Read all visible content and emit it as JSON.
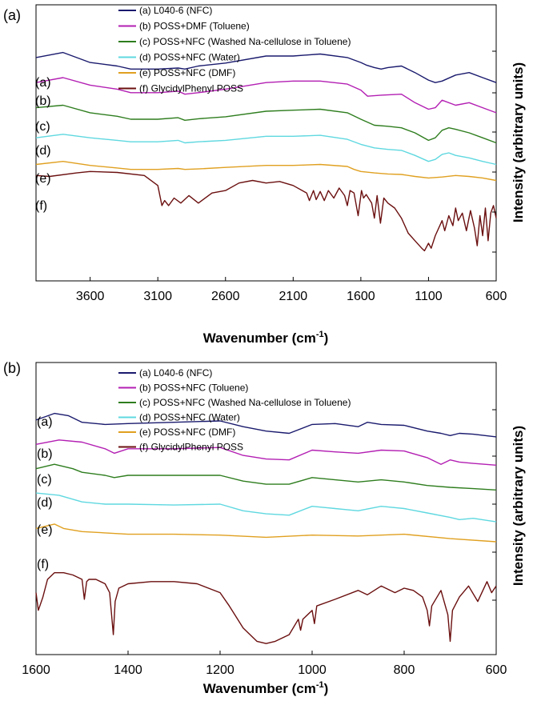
{
  "chart_data": [
    {
      "type": "line",
      "panel": "(a)",
      "xlabel_main": "Wavenumber (cm",
      "xlabel_sup": "-1",
      "xlabel_tail": ")",
      "ylabel": "Intensity (arbitrary units)",
      "xlim": [
        4000,
        600
      ],
      "x_ticks": [
        3600,
        3100,
        2600,
        2100,
        1600,
        1100,
        600
      ],
      "grid": false,
      "legend_position": "top",
      "curve_labels": [
        "(a)",
        "(b)",
        "(c)",
        "(d)",
        "(e)",
        "(f)"
      ],
      "series": [
        {
          "name": "(a) L040-6 (NFC)",
          "color": "#1a1a6e",
          "x": [
            4000,
            3800,
            3600,
            3400,
            3300,
            3100,
            2950,
            2900,
            2800,
            2600,
            2300,
            2100,
            1900,
            1700,
            1650,
            1600,
            1560,
            1500,
            1450,
            1400,
            1300,
            1200,
            1100,
            1050,
            1000,
            900,
            800,
            700,
            600
          ],
          "y": [
            2.95,
            3.05,
            2.85,
            2.78,
            2.72,
            2.72,
            2.74,
            2.72,
            2.78,
            2.84,
            2.98,
            2.98,
            3.02,
            2.95,
            2.9,
            2.85,
            2.8,
            2.75,
            2.72,
            2.75,
            2.78,
            2.65,
            2.5,
            2.45,
            2.48,
            2.6,
            2.65,
            2.55,
            2.45
          ]
        },
        {
          "name": "(b) POSS+DMF (Toluene)",
          "color": "#b31fb3",
          "x": [
            4000,
            3800,
            3600,
            3400,
            3300,
            3100,
            2950,
            2900,
            2800,
            2600,
            2300,
            2100,
            1900,
            1700,
            1600,
            1550,
            1450,
            1300,
            1200,
            1100,
            1050,
            1000,
            900,
            800,
            700,
            600
          ],
          "y": [
            2.45,
            2.55,
            2.4,
            2.32,
            2.25,
            2.25,
            2.28,
            2.22,
            2.25,
            2.32,
            2.45,
            2.48,
            2.48,
            2.42,
            2.3,
            2.18,
            2.2,
            2.22,
            2.05,
            1.92,
            1.95,
            2.1,
            2.0,
            2.05,
            1.95,
            1.85
          ]
        },
        {
          "name": "(c) POSS+NFC (Washed Na-cellulose in Toluene)",
          "color": "#2e7d1e",
          "x": [
            4000,
            3800,
            3600,
            3400,
            3300,
            3100,
            2950,
            2900,
            2800,
            2600,
            2300,
            2100,
            1900,
            1700,
            1600,
            1500,
            1400,
            1300,
            1200,
            1100,
            1050,
            1000,
            950,
            900,
            800,
            700,
            600
          ],
          "y": [
            1.95,
            2.0,
            1.85,
            1.78,
            1.72,
            1.72,
            1.75,
            1.7,
            1.73,
            1.77,
            1.88,
            1.9,
            1.92,
            1.85,
            1.72,
            1.6,
            1.58,
            1.55,
            1.45,
            1.3,
            1.35,
            1.5,
            1.55,
            1.52,
            1.45,
            1.35,
            1.25
          ]
        },
        {
          "name": "(d) POSS+NFC (Water)",
          "color": "#5fd8e0",
          "x": [
            4000,
            3800,
            3600,
            3400,
            3300,
            3100,
            2950,
            2900,
            2800,
            2600,
            2300,
            2100,
            1900,
            1700,
            1600,
            1500,
            1400,
            1300,
            1200,
            1100,
            1050,
            1000,
            950,
            900,
            800,
            700,
            600
          ],
          "y": [
            1.35,
            1.42,
            1.35,
            1.3,
            1.27,
            1.27,
            1.3,
            1.25,
            1.27,
            1.3,
            1.38,
            1.38,
            1.4,
            1.32,
            1.22,
            1.15,
            1.12,
            1.1,
            1.0,
            0.88,
            0.92,
            1.02,
            1.05,
            1.0,
            0.95,
            0.88,
            0.82
          ]
        },
        {
          "name": "(e) POSS+NFC (DMF)",
          "color": "#e0a020",
          "x": [
            4000,
            3800,
            3600,
            3400,
            3300,
            3100,
            2950,
            2900,
            2800,
            2600,
            2300,
            2100,
            1900,
            1700,
            1650,
            1600,
            1500,
            1400,
            1300,
            1200,
            1100,
            1000,
            900,
            800,
            700,
            600
          ],
          "y": [
            0.82,
            0.88,
            0.8,
            0.75,
            0.72,
            0.72,
            0.74,
            0.72,
            0.73,
            0.76,
            0.8,
            0.8,
            0.82,
            0.78,
            0.72,
            0.68,
            0.65,
            0.63,
            0.62,
            0.58,
            0.55,
            0.57,
            0.6,
            0.58,
            0.55,
            0.5
          ]
        },
        {
          "name": "(f) GlycidylPhenyl POSS",
          "color": "#6b0f0f",
          "x": [
            4000,
            3900,
            3700,
            3600,
            3400,
            3200,
            3100,
            3070,
            3050,
            3020,
            2980,
            2930,
            2870,
            2800,
            2700,
            2600,
            2500,
            2400,
            2300,
            2200,
            2100,
            2000,
            1980,
            1950,
            1930,
            1900,
            1870,
            1840,
            1800,
            1760,
            1720,
            1700,
            1680,
            1650,
            1620,
            1595,
            1580,
            1560,
            1520,
            1500,
            1480,
            1455,
            1430,
            1400,
            1350,
            1300,
            1250,
            1200,
            1150,
            1130,
            1100,
            1080,
            1050,
            1000,
            980,
            950,
            920,
            900,
            880,
            850,
            820,
            790,
            760,
            740,
            720,
            700,
            680,
            660,
            640,
            620,
            600
          ],
          "y": [
            0.6,
            0.58,
            0.65,
            0.68,
            0.66,
            0.6,
            0.4,
            0.0,
            0.1,
            0.0,
            0.15,
            0.05,
            0.2,
            0.05,
            0.25,
            0.3,
            0.45,
            0.5,
            0.45,
            0.48,
            0.4,
            0.25,
            0.1,
            0.3,
            0.12,
            0.28,
            0.1,
            0.3,
            0.15,
            0.35,
            0.2,
            0.0,
            0.3,
            0.25,
            -0.2,
            0.3,
            0.15,
            0.22,
            0.05,
            -0.25,
            0.2,
            -0.35,
            0.15,
            0.05,
            -0.05,
            -0.25,
            -0.55,
            -0.7,
            -0.85,
            -0.9,
            -0.75,
            -0.85,
            -0.6,
            -0.3,
            -0.5,
            -0.2,
            -0.4,
            -0.05,
            -0.3,
            -0.15,
            -0.5,
            -0.1,
            -0.45,
            -0.8,
            -0.2,
            -0.6,
            -0.05,
            -0.7,
            -0.15,
            0.0,
            -0.25
          ]
        }
      ]
    },
    {
      "type": "line",
      "panel": "(b)",
      "xlabel_main": "Wavenumber (cm",
      "xlabel_sup": "-1",
      "xlabel_tail": ")",
      "ylabel": "Intensity (arbitrary units)",
      "xlim": [
        1600,
        600
      ],
      "x_ticks": [
        1600,
        1400,
        1200,
        1000,
        800,
        600
      ],
      "grid": false,
      "legend_position": "top",
      "curve_labels": [
        "(a)",
        "(b)",
        "(c)",
        "(d)",
        "(e)",
        "(f)"
      ],
      "series": [
        {
          "name": "(a) L040-6 (NFC)",
          "color": "#1a1a6e",
          "x": [
            1600,
            1560,
            1530,
            1500,
            1450,
            1400,
            1300,
            1200,
            1150,
            1100,
            1050,
            1000,
            950,
            900,
            880,
            850,
            800,
            750,
            720,
            700,
            680,
            650,
            600
          ],
          "y": [
            3.3,
            3.45,
            3.4,
            3.25,
            3.2,
            3.22,
            3.25,
            3.28,
            3.15,
            3.05,
            3.0,
            3.2,
            3.22,
            3.15,
            3.25,
            3.2,
            3.18,
            3.05,
            3.0,
            2.95,
            3.0,
            2.98,
            2.92
          ]
        },
        {
          "name": "(b) POSS+NFC (Toluene)",
          "color": "#b31fb3",
          "x": [
            1600,
            1550,
            1500,
            1450,
            1430,
            1400,
            1300,
            1200,
            1150,
            1100,
            1050,
            1000,
            950,
            900,
            850,
            800,
            750,
            720,
            700,
            680,
            650,
            600
          ],
          "y": [
            2.75,
            2.85,
            2.8,
            2.65,
            2.55,
            2.65,
            2.65,
            2.68,
            2.5,
            2.42,
            2.4,
            2.62,
            2.58,
            2.55,
            2.62,
            2.6,
            2.45,
            2.3,
            2.4,
            2.35,
            2.32,
            2.28
          ]
        },
        {
          "name": "(c) POSS+NFC (Washed Na-cellulose in Toluene)",
          "color": "#2e7d1e",
          "x": [
            1600,
            1560,
            1520,
            1500,
            1450,
            1430,
            1400,
            1300,
            1200,
            1150,
            1100,
            1050,
            1000,
            950,
            900,
            850,
            800,
            750,
            700,
            650,
            600
          ],
          "y": [
            2.2,
            2.3,
            2.2,
            2.12,
            2.05,
            2.0,
            2.05,
            2.05,
            2.05,
            1.92,
            1.85,
            1.85,
            2.0,
            1.95,
            1.9,
            1.95,
            1.9,
            1.82,
            1.78,
            1.75,
            1.72
          ]
        },
        {
          "name": "(d) POSS+NFC (Water)",
          "color": "#5fd8e0",
          "x": [
            1600,
            1550,
            1500,
            1450,
            1400,
            1300,
            1200,
            1150,
            1100,
            1050,
            1000,
            950,
            900,
            850,
            800,
            750,
            700,
            680,
            650,
            600
          ],
          "y": [
            1.65,
            1.6,
            1.45,
            1.4,
            1.4,
            1.38,
            1.4,
            1.25,
            1.18,
            1.15,
            1.35,
            1.3,
            1.25,
            1.35,
            1.3,
            1.2,
            1.1,
            1.05,
            1.08,
            1.0
          ]
        },
        {
          "name": "(e) POSS+NFC (DMF)",
          "color": "#e0a020",
          "x": [
            1600,
            1560,
            1540,
            1500,
            1450,
            1400,
            1300,
            1200,
            1100,
            1000,
            900,
            800,
            700,
            600
          ],
          "y": [
            0.85,
            0.95,
            0.85,
            0.78,
            0.75,
            0.72,
            0.72,
            0.7,
            0.65,
            0.7,
            0.68,
            0.72,
            0.62,
            0.55
          ]
        },
        {
          "name": "(f) GlycidylPhenyl POSS",
          "color": "#6b0f0f",
          "x": [
            1600,
            1595,
            1585,
            1575,
            1560,
            1540,
            1520,
            1500,
            1495,
            1490,
            1485,
            1470,
            1450,
            1440,
            1432,
            1428,
            1420,
            1400,
            1350,
            1300,
            1250,
            1200,
            1180,
            1150,
            1120,
            1100,
            1080,
            1050,
            1030,
            1025,
            1020,
            1000,
            995,
            990,
            950,
            900,
            880,
            850,
            820,
            800,
            780,
            760,
            750,
            745,
            740,
            720,
            705,
            700,
            695,
            680,
            660,
            640,
            620,
            610,
            600
          ],
          "y": [
            -0.6,
            -1.0,
            -0.7,
            -0.3,
            -0.15,
            -0.15,
            -0.2,
            -0.3,
            -0.75,
            -0.35,
            -0.3,
            -0.3,
            -0.4,
            -0.6,
            -1.55,
            -0.8,
            -0.5,
            -0.4,
            -0.35,
            -0.35,
            -0.4,
            -0.6,
            -0.9,
            -1.4,
            -1.7,
            -1.75,
            -1.7,
            -1.55,
            -1.2,
            -1.45,
            -1.2,
            -1.0,
            -1.3,
            -0.9,
            -0.75,
            -0.55,
            -0.65,
            -0.45,
            -0.6,
            -0.5,
            -0.55,
            -0.7,
            -1.0,
            -1.35,
            -0.9,
            -0.55,
            -1.1,
            -1.7,
            -1.0,
            -0.7,
            -0.45,
            -0.8,
            -0.35,
            -0.6,
            -0.45
          ]
        }
      ]
    }
  ]
}
